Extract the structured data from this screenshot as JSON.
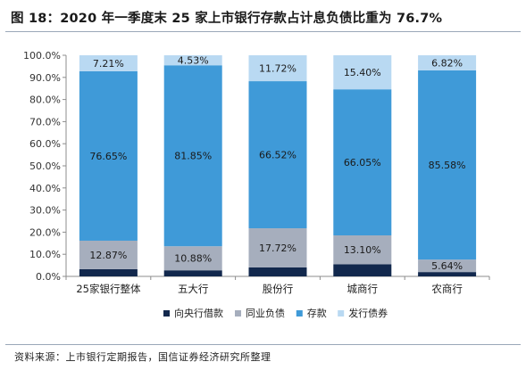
{
  "figure": {
    "title": "图 18：2020 年一季度末 25 家上市银行存款占计息负债比重为 76.7%",
    "source": "资料来源：上市银行定期报告，国信证券经济研究所整理"
  },
  "chart_data": {
    "type": "bar",
    "stacked": true,
    "title": "",
    "xlabel": "",
    "ylabel": "",
    "ylim": [
      0,
      100
    ],
    "y_ticks": [
      "0.0%",
      "10.0%",
      "20.0%",
      "30.0%",
      "40.0%",
      "50.0%",
      "60.0%",
      "70.0%",
      "80.0%",
      "90.0%",
      "100.0%"
    ],
    "grid": false,
    "legend_position": "bottom",
    "categories": [
      "25家银行整体",
      "五大行",
      "股份行",
      "城商行",
      "农商行"
    ],
    "series": [
      {
        "name": "向央行借款",
        "color": "#12284d",
        "values": [
          3.27,
          2.74,
          4.04,
          5.45,
          1.96
        ]
      },
      {
        "name": "同业负债",
        "color": "#a6aebd",
        "values": [
          12.87,
          10.88,
          17.72,
          13.1,
          5.64
        ]
      },
      {
        "name": "存款",
        "color": "#3f9ad8",
        "values": [
          76.65,
          81.85,
          66.52,
          66.05,
          85.58
        ]
      },
      {
        "name": "发行债券",
        "color": "#b9d9f2",
        "values": [
          7.21,
          4.53,
          11.72,
          15.4,
          6.82
        ]
      }
    ],
    "data_labels": [
      [
        "",
        "12.87%",
        "76.65%",
        "7.21%"
      ],
      [
        "",
        "10.88%",
        "81.85%",
        "4.53%"
      ],
      [
        "",
        "17.72%",
        "66.52%",
        "11.72%"
      ],
      [
        "",
        "13.10%",
        "66.05%",
        "15.40%"
      ],
      [
        "",
        "5.64%",
        "85.58%",
        "6.82%"
      ]
    ]
  }
}
